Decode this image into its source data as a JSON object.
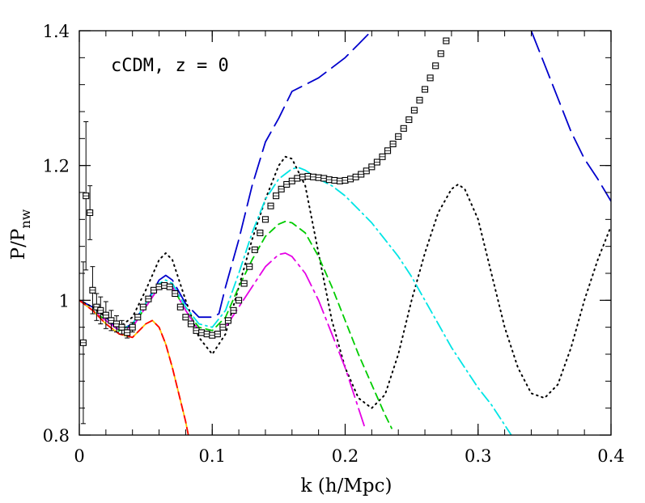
{
  "chart_data": {
    "type": "line",
    "annotation": "cCDM, z = 0",
    "xlabel": "k  (h/Mpc)",
    "ylabel": {
      "base": "P/P",
      "sub": "nw"
    },
    "xlim": [
      0,
      0.4
    ],
    "ylim": [
      0.8,
      1.4
    ],
    "xticks": [
      0,
      0.1,
      0.2,
      0.3,
      0.4
    ],
    "xtick_labels": [
      "0",
      "0.1",
      "0.2",
      "0.3",
      "0.4"
    ],
    "yticks": [
      0.8,
      1,
      1.2,
      1.4
    ],
    "ytick_labels": [
      "0.8",
      "1",
      "1.2",
      "1.4"
    ],
    "grid": false,
    "legend": "none",
    "series": [
      {
        "style": "long-dash",
        "color": "#0000cc",
        "x": [
          0,
          0.01,
          0.02,
          0.03,
          0.04,
          0.05,
          0.06,
          0.065,
          0.07,
          0.08,
          0.09,
          0.1,
          0.105,
          0.11,
          0.12,
          0.13,
          0.14,
          0.15,
          0.16,
          0.17,
          0.18,
          0.19,
          0.2,
          0.21,
          0.22,
          0.23,
          0.24,
          0.33,
          0.34,
          0.35,
          0.36,
          0.37,
          0.38,
          0.39,
          0.4
        ],
        "y": [
          1.0,
          0.99,
          0.975,
          0.955,
          0.965,
          0.995,
          1.03,
          1.037,
          1.03,
          0.995,
          0.975,
          0.975,
          0.98,
          1.02,
          1.09,
          1.17,
          1.235,
          1.27,
          1.31,
          1.32,
          1.33,
          1.345,
          1.36,
          1.38,
          1.4,
          1.425,
          1.45,
          1.45,
          1.4,
          1.35,
          1.3,
          1.25,
          1.21,
          1.18,
          1.147
        ]
      },
      {
        "style": "dotted",
        "color": "#000000",
        "x": [
          0,
          0.01,
          0.02,
          0.03,
          0.04,
          0.05,
          0.06,
          0.065,
          0.07,
          0.08,
          0.09,
          0.1,
          0.11,
          0.12,
          0.13,
          0.14,
          0.15,
          0.155,
          0.16,
          0.17,
          0.18,
          0.19,
          0.2,
          0.21,
          0.22,
          0.23,
          0.24,
          0.25,
          0.26,
          0.27,
          0.28,
          0.285,
          0.29,
          0.3,
          0.31,
          0.32,
          0.33,
          0.34,
          0.35,
          0.36,
          0.37,
          0.38,
          0.39,
          0.4
        ],
        "y": [
          1.0,
          0.99,
          0.975,
          0.96,
          0.975,
          1.015,
          1.06,
          1.07,
          1.06,
          1.0,
          0.945,
          0.92,
          0.95,
          1.02,
          1.09,
          1.15,
          1.2,
          1.213,
          1.21,
          1.17,
          1.07,
          0.97,
          0.9,
          0.855,
          0.84,
          0.86,
          0.92,
          1.0,
          1.07,
          1.13,
          1.165,
          1.172,
          1.165,
          1.12,
          1.04,
          0.96,
          0.9,
          0.862,
          0.855,
          0.875,
          0.93,
          1.0,
          1.06,
          1.11
        ]
      },
      {
        "style": "dash-dot",
        "color": "#00e5e5",
        "x": [
          0,
          0.01,
          0.02,
          0.03,
          0.04,
          0.05,
          0.06,
          0.065,
          0.07,
          0.08,
          0.09,
          0.1,
          0.11,
          0.12,
          0.13,
          0.14,
          0.15,
          0.16,
          0.165,
          0.17,
          0.18,
          0.19,
          0.2,
          0.21,
          0.22,
          0.23,
          0.24,
          0.25,
          0.26,
          0.27,
          0.28,
          0.29,
          0.3,
          0.31,
          0.32,
          0.325
        ],
        "y": [
          1.0,
          0.985,
          0.97,
          0.955,
          0.965,
          0.995,
          1.025,
          1.03,
          1.025,
          0.99,
          0.965,
          0.96,
          0.985,
          1.04,
          1.1,
          1.15,
          1.18,
          1.195,
          1.197,
          1.193,
          1.18,
          1.17,
          1.155,
          1.135,
          1.115,
          1.09,
          1.065,
          1.035,
          1.0,
          0.965,
          0.93,
          0.9,
          0.87,
          0.845,
          0.815,
          0.8
        ]
      },
      {
        "style": "dashed",
        "color": "#00cc00",
        "x": [
          0,
          0.01,
          0.02,
          0.03,
          0.04,
          0.05,
          0.06,
          0.065,
          0.07,
          0.08,
          0.09,
          0.1,
          0.11,
          0.12,
          0.13,
          0.14,
          0.15,
          0.155,
          0.16,
          0.17,
          0.18,
          0.19,
          0.2,
          0.21,
          0.22,
          0.23,
          0.235
        ],
        "y": [
          1.0,
          0.985,
          0.97,
          0.955,
          0.962,
          0.99,
          1.02,
          1.025,
          1.02,
          0.985,
          0.96,
          0.955,
          0.975,
          1.02,
          1.06,
          1.095,
          1.113,
          1.117,
          1.115,
          1.1,
          1.065,
          1.02,
          0.97,
          0.92,
          0.875,
          0.83,
          0.81
        ]
      },
      {
        "style": "long-dash-dot",
        "color": "#e500e5",
        "x": [
          0,
          0.01,
          0.02,
          0.03,
          0.04,
          0.05,
          0.06,
          0.065,
          0.07,
          0.08,
          0.09,
          0.1,
          0.11,
          0.12,
          0.13,
          0.14,
          0.15,
          0.155,
          0.16,
          0.17,
          0.18,
          0.19,
          0.2,
          0.21,
          0.215
        ],
        "y": [
          1.0,
          0.985,
          0.97,
          0.955,
          0.96,
          0.99,
          1.02,
          1.025,
          1.02,
          0.985,
          0.955,
          0.95,
          0.96,
          0.99,
          1.02,
          1.05,
          1.068,
          1.07,
          1.065,
          1.04,
          1.0,
          0.95,
          0.9,
          0.84,
          0.81
        ]
      },
      {
        "style": "solid",
        "color": "#ffc800",
        "x": [
          0,
          0.01,
          0.02,
          0.03,
          0.04,
          0.05,
          0.055,
          0.06,
          0.065,
          0.07,
          0.075,
          0.08,
          0.082
        ],
        "y": [
          1.0,
          0.985,
          0.965,
          0.95,
          0.945,
          0.965,
          0.97,
          0.96,
          0.935,
          0.9,
          0.86,
          0.82,
          0.8
        ]
      },
      {
        "style": "dashed",
        "color": "#ff0000",
        "x": [
          0,
          0.01,
          0.02,
          0.03,
          0.04,
          0.05,
          0.055,
          0.06,
          0.065,
          0.07,
          0.075,
          0.08,
          0.082
        ],
        "y": [
          1.0,
          0.985,
          0.965,
          0.95,
          0.945,
          0.965,
          0.97,
          0.96,
          0.935,
          0.9,
          0.86,
          0.82,
          0.8
        ]
      },
      {
        "style": "squares-with-errorbars",
        "color": "#000000",
        "x": [
          0.003,
          0.005,
          0.008,
          0.01,
          0.013,
          0.016,
          0.02,
          0.024,
          0.028,
          0.032,
          0.036,
          0.04,
          0.044,
          0.048,
          0.052,
          0.056,
          0.06,
          0.064,
          0.068,
          0.072,
          0.076,
          0.08,
          0.084,
          0.088,
          0.092,
          0.096,
          0.1,
          0.104,
          0.108,
          0.112,
          0.116,
          0.12,
          0.124,
          0.128,
          0.132,
          0.136,
          0.14,
          0.144,
          0.148,
          0.152,
          0.156,
          0.16,
          0.164,
          0.168,
          0.172,
          0.176,
          0.18,
          0.184,
          0.188,
          0.192,
          0.196,
          0.2,
          0.204,
          0.208,
          0.212,
          0.216,
          0.22,
          0.224,
          0.228,
          0.232,
          0.236,
          0.24,
          0.244,
          0.248,
          0.252,
          0.256,
          0.26,
          0.264,
          0.268,
          0.272,
          0.276
        ],
        "y": [
          0.937,
          1.155,
          1.13,
          1.015,
          0.99,
          0.985,
          0.978,
          0.97,
          0.965,
          0.96,
          0.952,
          0.96,
          0.975,
          0.99,
          1.002,
          1.015,
          1.02,
          1.022,
          1.02,
          1.01,
          0.99,
          0.975,
          0.965,
          0.955,
          0.952,
          0.95,
          0.948,
          0.95,
          0.96,
          0.97,
          0.985,
          1.0,
          1.025,
          1.05,
          1.075,
          1.1,
          1.12,
          1.14,
          1.155,
          1.165,
          1.172,
          1.177,
          1.181,
          1.183,
          1.184,
          1.183,
          1.182,
          1.181,
          1.179,
          1.178,
          1.177,
          1.178,
          1.18,
          1.183,
          1.187,
          1.192,
          1.198,
          1.205,
          1.213,
          1.222,
          1.232,
          1.243,
          1.255,
          1.268,
          1.282,
          1.297,
          1.313,
          1.33,
          1.348,
          1.366,
          1.385
        ],
        "yerr": [
          0.12,
          0.11,
          0.04,
          0.035,
          0.02,
          0.02,
          0.02,
          0.015,
          0.012,
          0.01,
          0.008,
          0.007,
          0.006,
          0.005,
          0.005,
          0.005,
          0.005,
          0.004,
          0.004,
          0.004,
          0.004,
          0.004,
          0.004,
          0.004,
          0.004,
          0.004,
          0.004,
          0.004,
          0.004,
          0.004,
          0.004,
          0.004,
          0.004,
          0.004,
          0.004,
          0.004,
          0.004,
          0.004,
          0.004,
          0.004,
          0.004,
          0.004,
          0.004,
          0.004,
          0.004,
          0.004,
          0.004,
          0.004,
          0.004,
          0.004,
          0.004,
          0.004,
          0.004,
          0.004,
          0.004,
          0.004,
          0.004,
          0.004,
          0.004,
          0.004,
          0.004,
          0.004,
          0.004,
          0.004,
          0.004,
          0.004,
          0.004,
          0.004,
          0.004,
          0.004,
          0.004
        ]
      }
    ]
  }
}
